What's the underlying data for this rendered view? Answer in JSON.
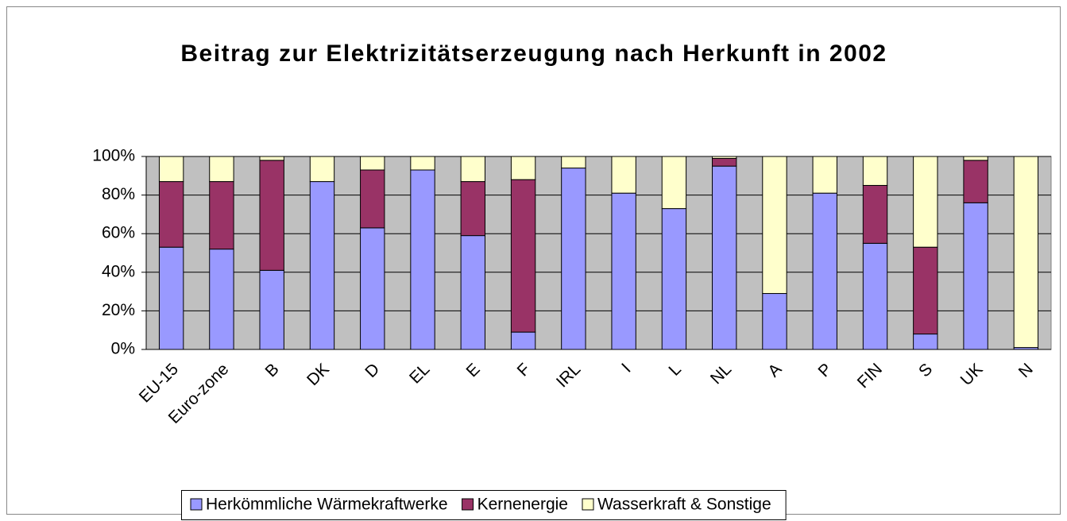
{
  "chart_data": {
    "type": "stacked_bar",
    "title": "Beitrag zur Elektrizitätserzeugung nach Herkunft in 2002",
    "categories": [
      "EU-15",
      "Euro-zone",
      "B",
      "DK",
      "D",
      "EL",
      "E",
      "F",
      "IRL",
      "I",
      "L",
      "NL",
      "A",
      "P",
      "FIN",
      "S",
      "UK",
      "N"
    ],
    "series": [
      {
        "name": "Herkömmliche Wärmekraftwerke",
        "color": "#9999ff",
        "values": [
          53,
          52,
          41,
          87,
          63,
          93,
          59,
          9,
          94,
          81,
          73,
          95,
          29,
          81,
          55,
          8,
          76,
          1
        ]
      },
      {
        "name": "Kernenergie",
        "color": "#993366",
        "values": [
          34,
          35,
          57,
          0,
          30,
          0,
          28,
          79,
          0,
          0,
          0,
          4,
          0,
          0,
          30,
          45,
          22,
          0
        ]
      },
      {
        "name": "Wasserkraft & Sonstige",
        "color": "#ffffcc",
        "values": [
          13,
          13,
          2,
          13,
          7,
          7,
          13,
          12,
          6,
          19,
          27,
          1,
          71,
          19,
          15,
          47,
          2,
          99
        ]
      }
    ],
    "ylim": [
      0,
      100
    ],
    "yticks": [
      {
        "value": 0,
        "label": "0%"
      },
      {
        "value": 20,
        "label": "20%"
      },
      {
        "value": 40,
        "label": "40%"
      },
      {
        "value": 60,
        "label": "60%"
      },
      {
        "value": 80,
        "label": "80%"
      },
      {
        "value": 100,
        "label": "100%"
      }
    ],
    "grid": true,
    "plot_background": "#c0c0c0",
    "legend": "bottom"
  }
}
